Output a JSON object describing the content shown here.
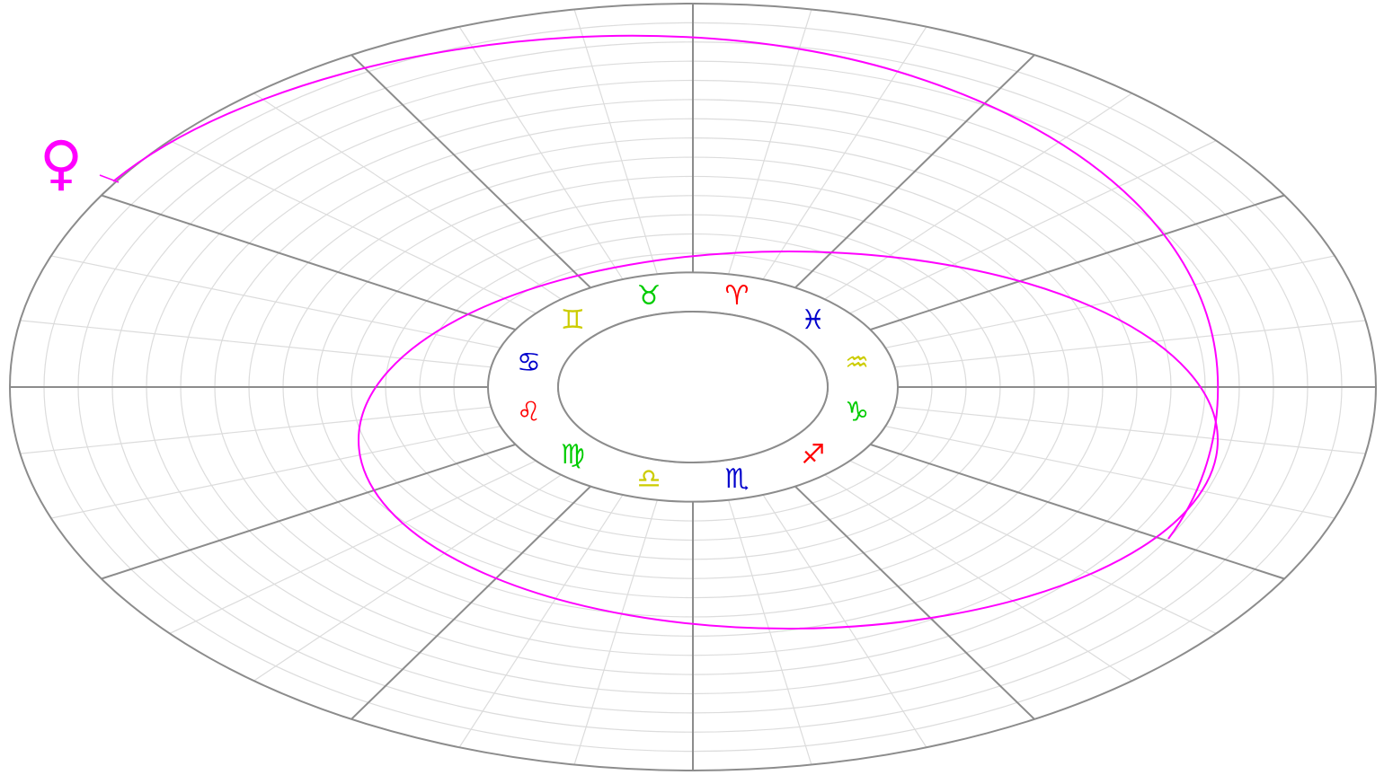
{
  "planet": {
    "name": "venus",
    "symbol": "♀",
    "color": "#ff00ff"
  },
  "zodiac_signs": [
    {
      "name": "aries",
      "symbol": "♈",
      "color": "#ff0000"
    },
    {
      "name": "taurus",
      "symbol": "♉",
      "color": "#00cc00"
    },
    {
      "name": "gemini",
      "symbol": "♊",
      "color": "#cccc00"
    },
    {
      "name": "cancer",
      "symbol": "♋",
      "color": "#0000cc"
    },
    {
      "name": "leo",
      "symbol": "♌",
      "color": "#ff0000"
    },
    {
      "name": "virgo",
      "symbol": "♍",
      "color": "#00cc00"
    },
    {
      "name": "libra",
      "symbol": "♎",
      "color": "#cccc00"
    },
    {
      "name": "scorpio",
      "symbol": "♏",
      "color": "#0000cc"
    },
    {
      "name": "sagittarius",
      "symbol": "♐",
      "color": "#ff0000"
    },
    {
      "name": "capricorn",
      "symbol": "♑",
      "color": "#00cc00"
    },
    {
      "name": "aquarius",
      "symbol": "♒",
      "color": "#cccc00"
    },
    {
      "name": "pisces",
      "symbol": "♓",
      "color": "#0000cc"
    }
  ],
  "colors": {
    "major_line": "#8c8c8c",
    "minor_grid": "#dcdcdc",
    "orbit": "#ff00ff",
    "background": "#ffffff"
  }
}
